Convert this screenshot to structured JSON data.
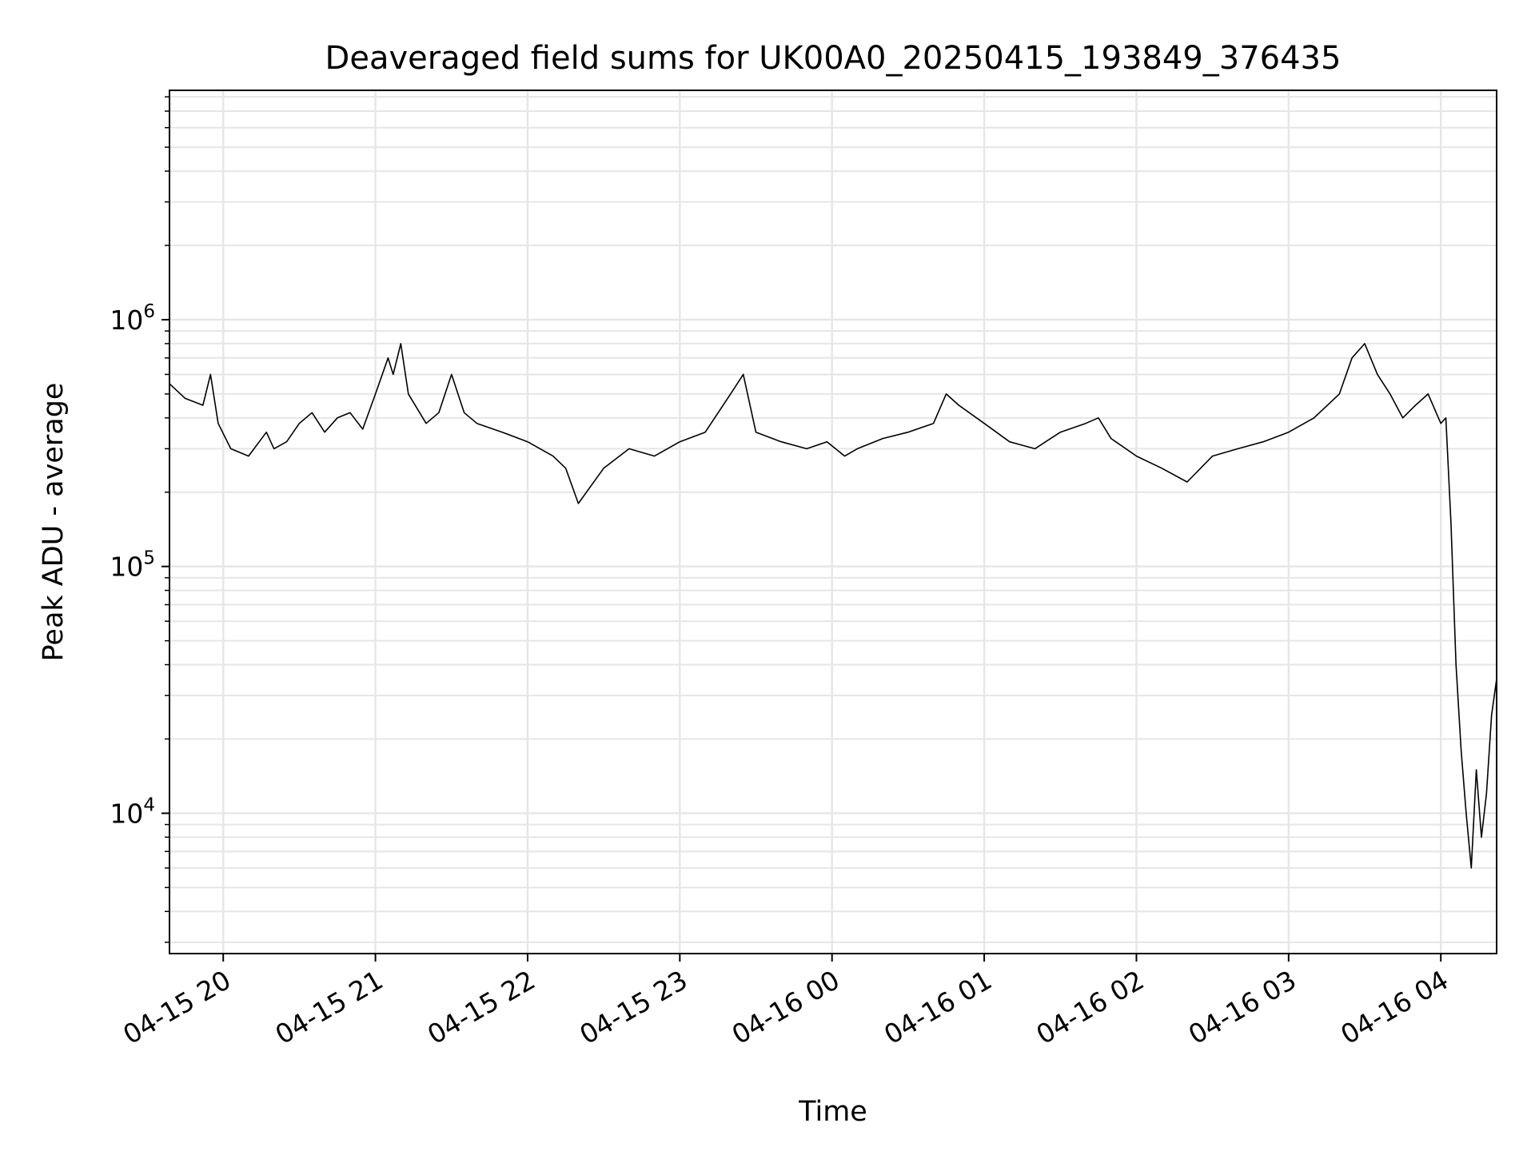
{
  "chart_data": {
    "type": "line",
    "title": "Deaveraged field sums for UK00A0_20250415_193849_376435",
    "xlabel": "Time",
    "ylabel": "Peak ADU - average",
    "yscale": "log",
    "ylim": [
      2700,
      8500000
    ],
    "xlim": [
      "04-15 19:38:49",
      "04-16 04:22"
    ],
    "grid": true,
    "line_color": "#000000",
    "grid_color": "#e6e6e6",
    "x_ticks": [
      "04-15 20",
      "04-15 21",
      "04-15 22",
      "04-15 23",
      "04-16 00",
      "04-16 01",
      "04-16 02",
      "04-16 03",
      "04-16 04"
    ],
    "y_ticks": [
      {
        "base": "10",
        "exp": "4",
        "value": 10000
      },
      {
        "base": "10",
        "exp": "5",
        "value": 100000
      },
      {
        "base": "10",
        "exp": "6",
        "value": 1000000
      }
    ],
    "series": [
      {
        "x": [
          "04-15 19:38:49",
          "04-15 19:45",
          "04-15 19:52",
          "04-15 19:55",
          "04-15 19:58",
          "04-15 20:03",
          "04-15 20:10",
          "04-15 20:17",
          "04-15 20:20",
          "04-15 20:25",
          "04-15 20:30",
          "04-15 20:35",
          "04-15 20:40",
          "04-15 20:45",
          "04-15 20:50",
          "04-15 20:55",
          "04-15 21:00",
          "04-15 21:05",
          "04-15 21:07",
          "04-15 21:10",
          "04-15 21:13",
          "04-15 21:20",
          "04-15 21:25",
          "04-15 21:30",
          "04-15 21:35",
          "04-15 21:40",
          "04-15 21:50",
          "04-15 22:00",
          "04-15 22:10",
          "04-15 22:15",
          "04-15 22:20",
          "04-15 22:30",
          "04-15 22:40",
          "04-15 22:50",
          "04-15 23:00",
          "04-15 23:10",
          "04-15 23:20",
          "04-15 23:25",
          "04-15 23:30",
          "04-15 23:40",
          "04-15 23:50",
          "04-15 23:58",
          "04-16 00:05",
          "04-16 00:10",
          "04-16 00:20",
          "04-16 00:30",
          "04-16 00:40",
          "04-16 00:45",
          "04-16 00:50",
          "04-16 01:00",
          "04-16 01:10",
          "04-16 01:20",
          "04-16 01:30",
          "04-16 01:40",
          "04-16 01:45",
          "04-16 01:50",
          "04-16 02:00",
          "04-16 02:10",
          "04-16 02:20",
          "04-16 02:30",
          "04-16 02:40",
          "04-16 02:50",
          "04-16 03:00",
          "04-16 03:10",
          "04-16 03:20",
          "04-16 03:25",
          "04-16 03:30",
          "04-16 03:35",
          "04-16 03:40",
          "04-16 03:45",
          "04-16 03:50",
          "04-16 03:55",
          "04-16 04:00",
          "04-16 04:02",
          "04-16 04:04",
          "04-16 04:06",
          "04-16 04:08",
          "04-16 04:10",
          "04-16 04:12",
          "04-16 04:14",
          "04-16 04:16",
          "04-16 04:18",
          "04-16 04:20",
          "04-16 04:22"
        ],
        "values": [
          550000,
          480000,
          450000,
          600000,
          380000,
          300000,
          280000,
          350000,
          300000,
          320000,
          380000,
          420000,
          350000,
          400000,
          420000,
          360000,
          500000,
          700000,
          600000,
          800000,
          500000,
          380000,
          420000,
          600000,
          420000,
          380000,
          350000,
          320000,
          280000,
          250000,
          180000,
          250000,
          300000,
          280000,
          320000,
          350000,
          500000,
          600000,
          350000,
          320000,
          300000,
          320000,
          280000,
          300000,
          330000,
          350000,
          380000,
          500000,
          450000,
          380000,
          320000,
          300000,
          350000,
          380000,
          400000,
          330000,
          280000,
          250000,
          220000,
          280000,
          300000,
          320000,
          350000,
          400000,
          500000,
          700000,
          800000,
          600000,
          500000,
          400000,
          450000,
          500000,
          380000,
          400000,
          150000,
          40000,
          18000,
          10000,
          6000,
          15000,
          8000,
          12000,
          25000,
          35000
        ]
      }
    ]
  }
}
